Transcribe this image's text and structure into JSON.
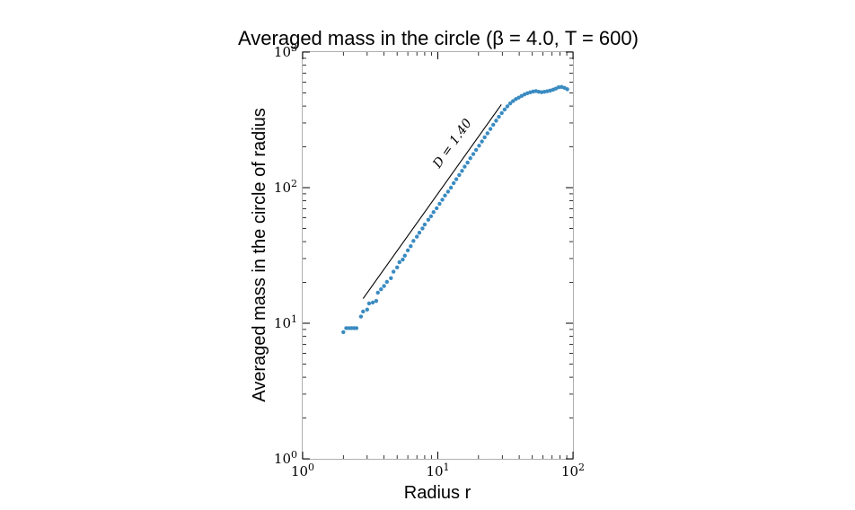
{
  "chart_data": {
    "type": "scatter",
    "title": "Averaged mass in the circle (β = 4.0, T = 600)",
    "xlabel": "Radius r",
    "ylabel": "Averaged mass in the circle of radius",
    "xscale": "log",
    "yscale": "log",
    "xlim": [
      1,
      100
    ],
    "ylim": [
      1,
      1000
    ],
    "x_ticks": [
      {
        "value": 1,
        "label": "10",
        "exp": "0"
      },
      {
        "value": 10,
        "label": "10",
        "exp": "1"
      },
      {
        "value": 100,
        "label": "10",
        "exp": "2"
      }
    ],
    "y_ticks": [
      {
        "value": 1,
        "label": "10",
        "exp": "0"
      },
      {
        "value": 10,
        "label": "10",
        "exp": "1"
      },
      {
        "value": 100,
        "label": "10",
        "exp": "2"
      },
      {
        "value": 1000,
        "label": "10",
        "exp": "3"
      }
    ],
    "grid": false,
    "marker_color": "#3a8bc1",
    "fit_line": {
      "label": "D = 1.40",
      "slope": 1.4,
      "x": [
        2.8,
        29.5
      ],
      "y": [
        15.2,
        410
      ]
    },
    "series": [
      {
        "points": [
          [
            2.0,
            8.6
          ],
          [
            2.1,
            9.2
          ],
          [
            2.2,
            9.2
          ],
          [
            2.3,
            9.2
          ],
          [
            2.4,
            9.2
          ],
          [
            2.5,
            9.2
          ],
          [
            2.7,
            11.2
          ],
          [
            2.8,
            12.2
          ],
          [
            3.0,
            12.6
          ],
          [
            3.1,
            14.0
          ],
          [
            3.3,
            14.2
          ],
          [
            3.5,
            14.6
          ],
          [
            3.6,
            16.8
          ],
          [
            3.8,
            17.8
          ],
          [
            4.0,
            18.8
          ],
          [
            4.2,
            20.2
          ],
          [
            4.5,
            21.5
          ],
          [
            4.7,
            24.0
          ],
          [
            5.0,
            25.8
          ],
          [
            5.2,
            28.2
          ],
          [
            5.5,
            29.5
          ],
          [
            5.7,
            31.5
          ],
          [
            6.0,
            34.5
          ],
          [
            6.3,
            37.0
          ],
          [
            6.6,
            40.5
          ],
          [
            7.0,
            43.5
          ],
          [
            7.3,
            46.5
          ],
          [
            7.7,
            50.0
          ],
          [
            8.0,
            53.5
          ],
          [
            8.5,
            58.0
          ],
          [
            8.9,
            61.5
          ],
          [
            9.3,
            66.0
          ],
          [
            9.8,
            70.5
          ],
          [
            10.3,
            76.0
          ],
          [
            10.8,
            81.5
          ],
          [
            11.3,
            87.5
          ],
          [
            11.9,
            93.5
          ],
          [
            12.5,
            100.0
          ],
          [
            13.1,
            108.0
          ],
          [
            13.7,
            115.5
          ],
          [
            14.4,
            124.0
          ],
          [
            15.1,
            133.0
          ],
          [
            15.8,
            143.0
          ],
          [
            16.6,
            153.0
          ],
          [
            17.4,
            165.0
          ],
          [
            18.3,
            177.0
          ],
          [
            19.2,
            190.0
          ],
          [
            20.2,
            204.0
          ],
          [
            21.2,
            219.0
          ],
          [
            22.2,
            235.0
          ],
          [
            23.3,
            252.0
          ],
          [
            24.5,
            271.0
          ],
          [
            25.7,
            291.0
          ],
          [
            27.0,
            312.0
          ],
          [
            28.3,
            333.0
          ],
          [
            29.7,
            355.0
          ],
          [
            31.2,
            377.0
          ],
          [
            32.7,
            398.0
          ],
          [
            34.3,
            418.0
          ],
          [
            36.0,
            435.0
          ],
          [
            37.8,
            450.0
          ],
          [
            39.7,
            462.0
          ],
          [
            41.7,
            475.0
          ],
          [
            43.8,
            487.0
          ],
          [
            46.0,
            497.0
          ],
          [
            48.3,
            505.0
          ],
          [
            50.7,
            512.0
          ],
          [
            53.2,
            516.0
          ],
          [
            55.8,
            510.0
          ],
          [
            58.6,
            506.0
          ],
          [
            61.5,
            510.0
          ],
          [
            64.6,
            515.0
          ],
          [
            67.8,
            520.0
          ],
          [
            71.2,
            528.0
          ],
          [
            74.7,
            538.0
          ],
          [
            78.4,
            550.0
          ],
          [
            82.3,
            553.0
          ],
          [
            86.4,
            545.0
          ],
          [
            90.7,
            532.0
          ]
        ]
      }
    ]
  }
}
